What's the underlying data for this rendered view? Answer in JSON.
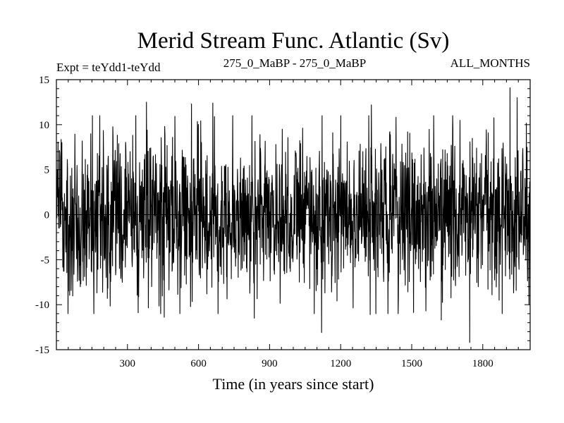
{
  "chart_data": {
    "type": "line",
    "title": "Merid Stream Func. Atlantic (Sv)",
    "subtitle_left": "Expt = teYdd1-teYdd",
    "subtitle_center": "275_0_MaBP - 275_0_MaBP",
    "subtitle_right": "ALL_MONTHS",
    "xlabel": "Time (in years since start)",
    "ylabel": "",
    "xlim": [
      0,
      2000
    ],
    "ylim": [
      -15,
      15
    ],
    "x_ticks": [
      300,
      600,
      900,
      1200,
      1500,
      1800
    ],
    "y_ticks": [
      -15,
      -10,
      -5,
      0,
      5,
      10,
      15
    ],
    "grid": false,
    "series": [
      {
        "line_color": "#000000",
        "n_points": 2000,
        "noise_std": 4.2,
        "extremes": [
          {
            "x": 1915,
            "y": 14.1
          },
          {
            "x": 1745,
            "y": -14.2
          },
          {
            "x": 1120,
            "y": -13.1
          },
          {
            "x": 380,
            "y": 12.5
          },
          {
            "x": 570,
            "y": 12.3
          },
          {
            "x": 660,
            "y": 12.4
          },
          {
            "x": 1330,
            "y": 12.2
          },
          {
            "x": 1945,
            "y": 13.0
          },
          {
            "x": 455,
            "y": -11.4
          },
          {
            "x": 835,
            "y": -11.5
          },
          {
            "x": 1325,
            "y": -11.1
          },
          {
            "x": 1625,
            "y": -11.7
          },
          {
            "x": 345,
            "y": -10.9
          },
          {
            "x": 1995,
            "y": -10.0
          },
          {
            "x": 1560,
            "y": -10.7
          },
          {
            "x": 215,
            "y": -9.3
          }
        ]
      }
    ]
  }
}
